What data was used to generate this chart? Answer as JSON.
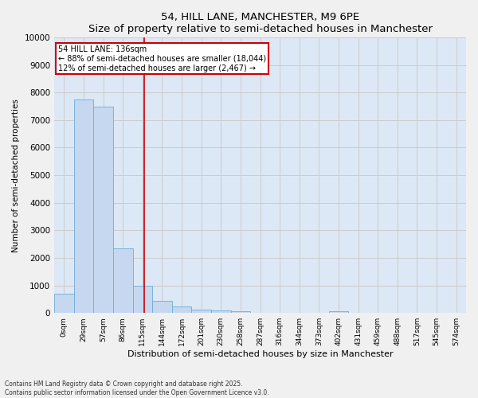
{
  "title": "54, HILL LANE, MANCHESTER, M9 6PE",
  "subtitle": "Size of property relative to semi-detached houses in Manchester",
  "xlabel": "Distribution of semi-detached houses by size in Manchester",
  "ylabel": "Number of semi-detached properties",
  "bin_labels": [
    "0sqm",
    "29sqm",
    "57sqm",
    "86sqm",
    "115sqm",
    "144sqm",
    "172sqm",
    "201sqm",
    "230sqm",
    "258sqm",
    "287sqm",
    "316sqm",
    "344sqm",
    "373sqm",
    "402sqm",
    "431sqm",
    "459sqm",
    "488sqm",
    "517sqm",
    "545sqm",
    "574sqm"
  ],
  "bar_values": [
    700,
    7750,
    7500,
    2350,
    1000,
    450,
    250,
    130,
    100,
    60,
    0,
    0,
    0,
    0,
    60,
    0,
    0,
    0,
    0,
    0,
    0
  ],
  "bar_color": "#c5d8ef",
  "bar_edge_color": "#6baed6",
  "vline_color": "#cc0000",
  "vline_x": 4.6,
  "annotation_title": "54 HILL LANE: 136sqm",
  "annotation_line1": "← 88% of semi-detached houses are smaller (18,044)",
  "annotation_line2": "12% of semi-detached houses are larger (2,467) →",
  "annotation_box_color": "#cc0000",
  "ylim": [
    0,
    10000
  ],
  "yticks": [
    0,
    1000,
    2000,
    3000,
    4000,
    5000,
    6000,
    7000,
    8000,
    9000,
    10000
  ],
  "grid_color": "#cccccc",
  "background_color": "#dce8f5",
  "fig_background": "#f0f0f0",
  "footnote1": "Contains HM Land Registry data © Crown copyright and database right 2025.",
  "footnote2": "Contains public sector information licensed under the Open Government Licence v3.0."
}
